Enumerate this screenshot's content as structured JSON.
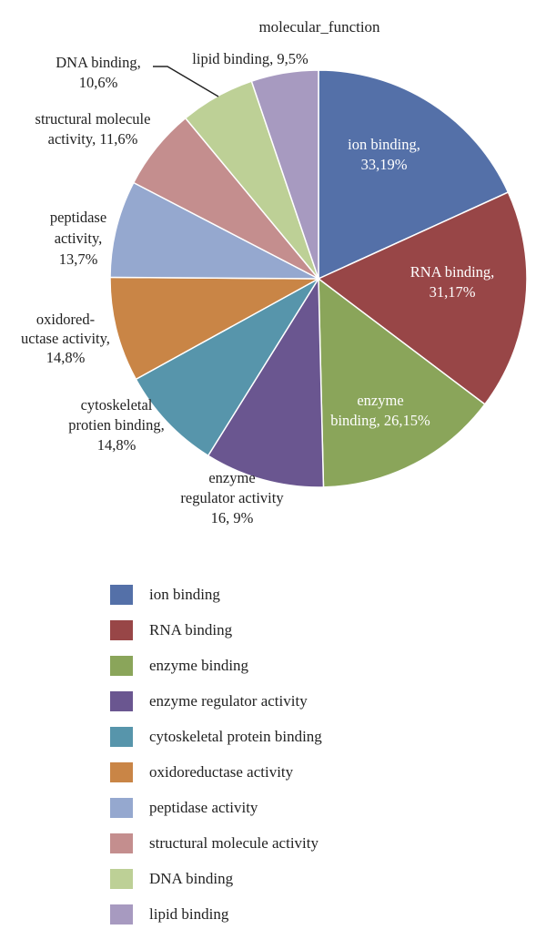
{
  "chart_data": {
    "type": "pie",
    "title": "molecular_function",
    "slices": [
      {
        "name": "ion binding",
        "value": 33.19,
        "label_lines": [
          "ion binding,",
          "33,19%"
        ],
        "color": "#5470a8"
      },
      {
        "name": "RNA binding",
        "value": 31.17,
        "label_lines": [
          "RNA binding,",
          "31,17%"
        ],
        "color": "#984647"
      },
      {
        "name": "enzyme binding",
        "value": 26.15,
        "label_lines": [
          "enzyme",
          "binding, 26,15%"
        ],
        "color": "#8aa55a"
      },
      {
        "name": "enzyme regulator activity",
        "value": 16.9,
        "label_lines": [
          "enzyme",
          "regulator activity",
          "16, 9%"
        ],
        "color": "#6a5690"
      },
      {
        "name": "cytoskeletal protein binding",
        "value": 14.8,
        "label_lines": [
          "cytoskeletal",
          "protien binding,",
          "14,8%"
        ],
        "color": "#5795ab"
      },
      {
        "name": "oxidoreductase activity",
        "value": 14.8,
        "label_lines": [
          "oxidored-",
          "uctase activity,",
          "14,8%"
        ],
        "color": "#c98546"
      },
      {
        "name": "peptidase activity",
        "value": 13.7,
        "label_lines": [
          "peptidase",
          "activity,",
          "13,7%"
        ],
        "color": "#95a8cf"
      },
      {
        "name": "structural molecule activity",
        "value": 11.6,
        "label_lines": [
          "structural molecule",
          "activity, 11,6%"
        ],
        "color": "#c48e8e"
      },
      {
        "name": "DNA binding",
        "value": 10.6,
        "label_lines": [
          "DNA binding,",
          "10,6%"
        ],
        "color": "#bdd096"
      },
      {
        "name": "lipid binding",
        "value": 9.5,
        "label_lines": [
          "lipid binding, 9,5%"
        ],
        "color": "#a79ac0"
      }
    ],
    "legend_placement": "bottom",
    "legend": [
      "ion binding",
      "RNA binding",
      "enzyme binding",
      "enzyme regulator activity",
      "cytoskeletal protein binding",
      "oxidoreductase activity",
      "peptidase activity",
      "structural molecule activity",
      "DNA binding",
      "lipid binding"
    ]
  }
}
